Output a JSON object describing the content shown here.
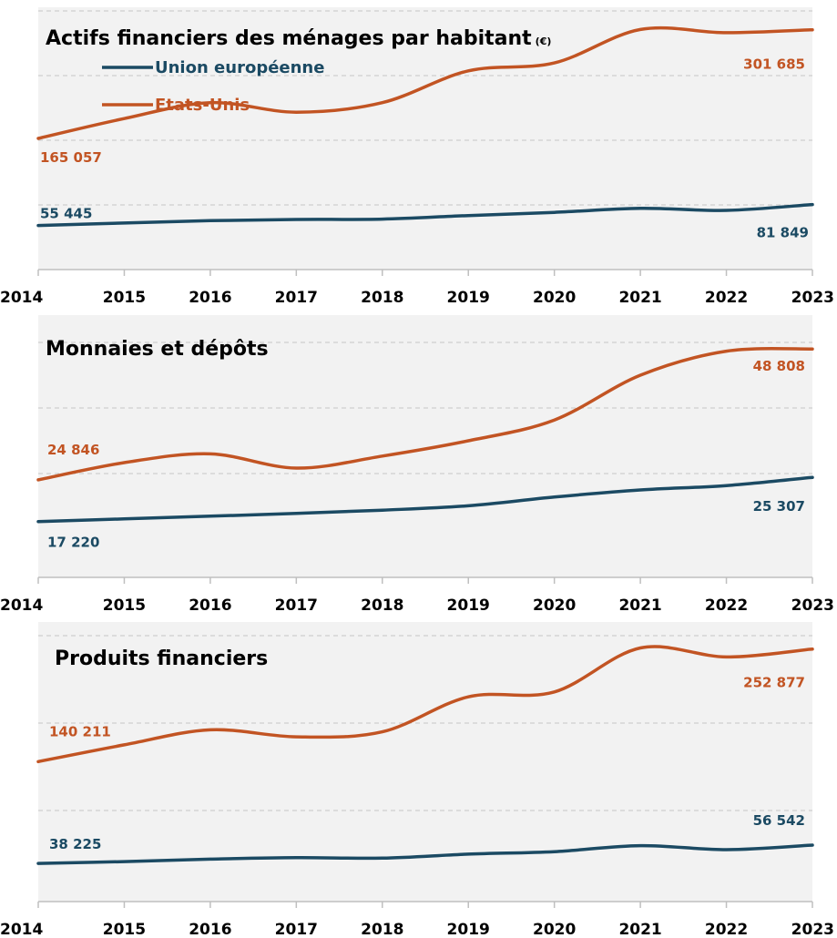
{
  "colors": {
    "eu": "#1b4a63",
    "us": "#c25423",
    "panel_bg": "#f2f2f2",
    "grid": "#cfcfcf",
    "axis": "#bfbfbf"
  },
  "legend": {
    "eu_label": "Union européenne",
    "us_label": "Etats-Unis"
  },
  "chart_data": [
    {
      "type": "line",
      "title": "Actifs financiers des ménages par habitant",
      "title_unit": "(€)",
      "x": [
        2014,
        2015,
        2016,
        2017,
        2018,
        2019,
        2020,
        2021,
        2022,
        2023
      ],
      "series": [
        {
          "name": "Union européenne",
          "key": "eu",
          "values": [
            55445,
            58500,
            61500,
            63000,
            63500,
            68000,
            72000,
            77000,
            74500,
            81849
          ]
        },
        {
          "name": "Etats-Unis",
          "key": "us",
          "values": [
            165057,
            190000,
            210000,
            198000,
            210000,
            250000,
            260000,
            302000,
            298000,
            301685
          ]
        }
      ],
      "labels": [
        {
          "series": "us",
          "index": 0,
          "text": "165 057"
        },
        {
          "series": "eu",
          "index": 0,
          "text": "55 445"
        },
        {
          "series": "us",
          "index": 9,
          "text": "301 685"
        },
        {
          "series": "eu",
          "index": 9,
          "text": "81 849"
        }
      ],
      "ylim": [
        0,
        330000
      ],
      "grid": true
    },
    {
      "type": "line",
      "title": "Monnaies et dépôts",
      "x": [
        2014,
        2015,
        2016,
        2017,
        2018,
        2019,
        2020,
        2021,
        2022,
        2023
      ],
      "series": [
        {
          "name": "Union européenne",
          "key": "eu",
          "values": [
            17220,
            17700,
            18200,
            18700,
            19300,
            20100,
            21700,
            23000,
            23800,
            25307
          ]
        },
        {
          "name": "Etats-Unis",
          "key": "us",
          "values": [
            24846,
            28000,
            29600,
            27000,
            29200,
            32000,
            35800,
            44000,
            48400,
            48808
          ]
        }
      ],
      "labels": [
        {
          "series": "us",
          "index": 0,
          "text": "24 846"
        },
        {
          "series": "eu",
          "index": 0,
          "text": "17 220"
        },
        {
          "series": "us",
          "index": 9,
          "text": "48 808"
        },
        {
          "series": "eu",
          "index": 9,
          "text": "25 307"
        }
      ],
      "ylim": [
        7000,
        55000
      ],
      "grid": true
    },
    {
      "type": "line",
      "title": "Produits financiers",
      "x": [
        2014,
        2015,
        2016,
        2017,
        2018,
        2019,
        2020,
        2021,
        2022,
        2023
      ],
      "series": [
        {
          "name": "Union européenne",
          "key": "eu",
          "values": [
            38225,
            40000,
            42500,
            44000,
            43500,
            47500,
            50000,
            56000,
            52000,
            56542
          ]
        },
        {
          "name": "Etats-Unis",
          "key": "us",
          "values": [
            140211,
            157000,
            172000,
            165000,
            170000,
            205000,
            210000,
            254000,
            245000,
            252877
          ]
        }
      ],
      "labels": [
        {
          "series": "us",
          "index": 0,
          "text": "140 211"
        },
        {
          "series": "eu",
          "index": 0,
          "text": "38 225"
        },
        {
          "series": "us",
          "index": 9,
          "text": "252 877"
        },
        {
          "series": "eu",
          "index": 9,
          "text": "56 542"
        }
      ],
      "ylim": [
        0,
        280000
      ],
      "grid": true
    }
  ]
}
